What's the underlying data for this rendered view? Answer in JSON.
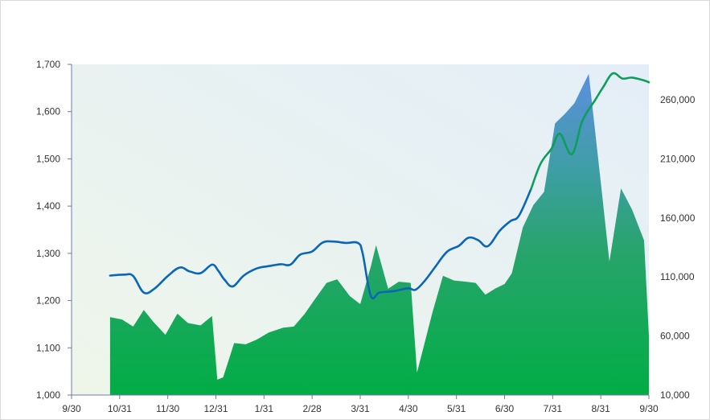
{
  "chart_data": {
    "type": "area",
    "title": "",
    "xlabel": "",
    "ylabel": "",
    "x_tick_labels": [
      "9/30",
      "10/31",
      "11/30",
      "12/31",
      "1/31",
      "2/28",
      "3/31",
      "4/30",
      "5/31",
      "6/30",
      "7/31",
      "8/31",
      "9/30"
    ],
    "left_axis": {
      "min": 1000,
      "max": 1700,
      "step": 100,
      "tick_labels": [
        "1,000",
        "1,100",
        "1,200",
        "1,300",
        "1,400",
        "1,500",
        "1,600",
        "1,700"
      ]
    },
    "right_axis": {
      "min": 10000,
      "max": 290000,
      "step": 50000,
      "tick_labels": [
        "10,000",
        "60,000",
        "110,000",
        "160,000",
        "210,000",
        "260,000"
      ]
    },
    "series": [
      {
        "kind": "area",
        "axis": "right",
        "points": [
          [
            0.8,
            76000
          ],
          [
            1.05,
            74000
          ],
          [
            1.28,
            68000
          ],
          [
            1.5,
            82000
          ],
          [
            1.7,
            72000
          ],
          [
            1.95,
            61000
          ],
          [
            2.2,
            79000
          ],
          [
            2.42,
            71000
          ],
          [
            2.68,
            69000
          ],
          [
            2.92,
            77000
          ],
          [
            3.03,
            23000
          ],
          [
            3.15,
            25000
          ],
          [
            3.38,
            54000
          ],
          [
            3.62,
            53000
          ],
          [
            3.85,
            57000
          ],
          [
            4.1,
            63000
          ],
          [
            4.4,
            67000
          ],
          [
            4.62,
            68000
          ],
          [
            4.85,
            79000
          ],
          [
            5.02,
            89000
          ],
          [
            5.3,
            105000
          ],
          [
            5.52,
            108000
          ],
          [
            5.78,
            94000
          ],
          [
            6.0,
            87000
          ],
          [
            6.22,
            119000
          ],
          [
            6.33,
            137000
          ],
          [
            6.58,
            100000
          ],
          [
            6.8,
            106000
          ],
          [
            7.05,
            105000
          ],
          [
            7.18,
            29000
          ],
          [
            7.5,
            80000
          ],
          [
            7.72,
            111000
          ],
          [
            7.95,
            107000
          ],
          [
            8.2,
            106000
          ],
          [
            8.4,
            105000
          ],
          [
            8.6,
            95000
          ],
          [
            8.8,
            100000
          ],
          [
            9.0,
            104000
          ],
          [
            9.15,
            113000
          ],
          [
            9.38,
            152000
          ],
          [
            9.6,
            171000
          ],
          [
            9.82,
            182000
          ],
          [
            10.05,
            240000
          ],
          [
            10.25,
            248000
          ],
          [
            10.45,
            257000
          ],
          [
            10.75,
            282000
          ],
          [
            11.0,
            190000
          ],
          [
            11.18,
            123000
          ],
          [
            11.42,
            185000
          ],
          [
            11.65,
            167000
          ],
          [
            11.9,
            141000
          ],
          [
            12.0,
            60000
          ]
        ]
      },
      {
        "kind": "line",
        "axis": "left",
        "color": "#0a66b8",
        "points": [
          [
            0.8,
            1253
          ],
          [
            1.1,
            1255
          ],
          [
            1.28,
            1252
          ],
          [
            1.5,
            1217
          ],
          [
            1.72,
            1225
          ],
          [
            2.0,
            1252
          ],
          [
            2.25,
            1270
          ],
          [
            2.45,
            1262
          ],
          [
            2.68,
            1258
          ],
          [
            2.92,
            1276
          ],
          [
            3.05,
            1263
          ],
          [
            3.18,
            1244
          ],
          [
            3.35,
            1230
          ],
          [
            3.58,
            1253
          ],
          [
            3.85,
            1268
          ],
          [
            4.1,
            1273
          ],
          [
            4.35,
            1277
          ],
          [
            4.55,
            1276
          ],
          [
            4.75,
            1297
          ],
          [
            5.0,
            1304
          ],
          [
            5.22,
            1323
          ],
          [
            5.45,
            1325
          ],
          [
            5.7,
            1322
          ],
          [
            5.95,
            1322
          ],
          [
            6.05,
            1300
          ],
          [
            6.22,
            1210
          ],
          [
            6.4,
            1217
          ],
          [
            6.7,
            1220
          ],
          [
            7.0,
            1226
          ],
          [
            7.15,
            1223
          ],
          [
            7.35,
            1243
          ],
          [
            7.55,
            1270
          ],
          [
            7.8,
            1303
          ],
          [
            8.05,
            1316
          ],
          [
            8.25,
            1333
          ],
          [
            8.45,
            1328
          ],
          [
            8.65,
            1315
          ],
          [
            8.9,
            1348
          ],
          [
            9.12,
            1368
          ],
          [
            9.3,
            1380
          ],
          [
            9.55,
            1436
          ]
        ]
      },
      {
        "kind": "line",
        "axis": "left",
        "color": "#0d9e5c",
        "points": [
          [
            9.55,
            1436
          ],
          [
            9.75,
            1490
          ],
          [
            9.98,
            1522
          ],
          [
            10.15,
            1553
          ],
          [
            10.4,
            1510
          ],
          [
            10.62,
            1581
          ],
          [
            10.88,
            1624
          ],
          [
            11.05,
            1652
          ],
          [
            11.25,
            1681
          ],
          [
            11.45,
            1670
          ],
          [
            11.65,
            1672
          ],
          [
            11.9,
            1666
          ],
          [
            12.0,
            1662
          ]
        ]
      }
    ]
  }
}
